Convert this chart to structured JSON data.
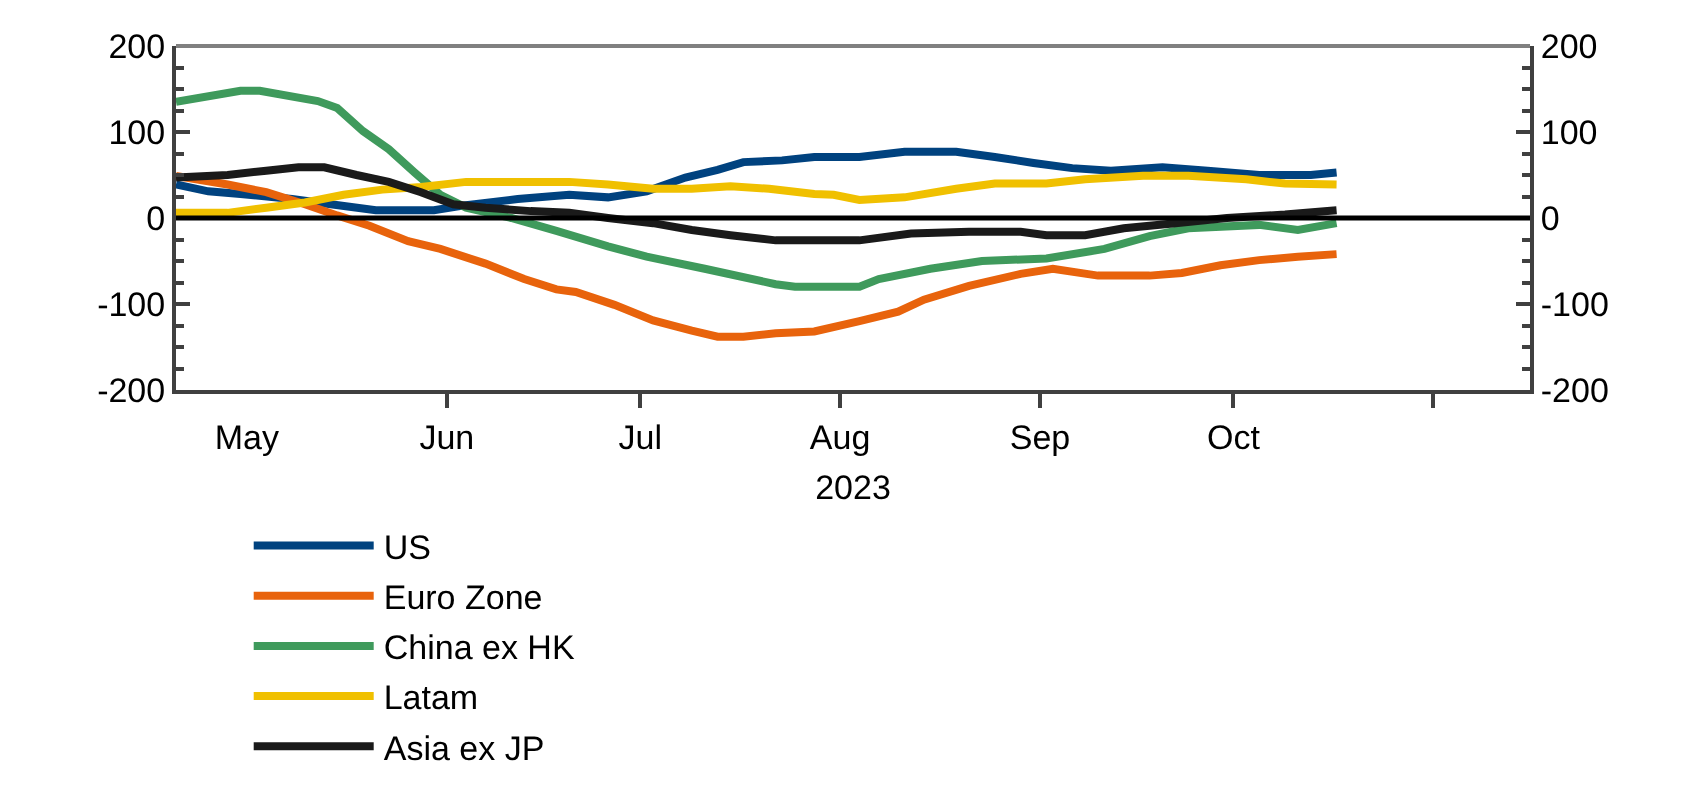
{
  "chart_data": {
    "type": "line",
    "xlabel": "2023",
    "xlim": [
      "2023-04-20",
      "2023-11-16"
    ],
    "xticks": [
      {
        "value": "2023-05-01",
        "label": "May"
      },
      {
        "value": "2023-06-01",
        "label": "Jun"
      },
      {
        "value": "2023-07-01",
        "label": "Jul"
      },
      {
        "value": "2023-08-01",
        "label": "Aug"
      },
      {
        "value": "2023-09-01",
        "label": "Sep"
      },
      {
        "value": "2023-10-01",
        "label": "Oct"
      },
      {
        "value": "2023-11-01",
        "label": null
      }
    ],
    "ylim": [
      -200,
      200
    ],
    "yticks": [
      -200,
      -100,
      0,
      100,
      200
    ],
    "y2lim": [
      -200,
      200
    ],
    "y2ticks": [
      -200,
      -100,
      0,
      100,
      200
    ],
    "legend": "bottom",
    "marker": "none",
    "line_style": "solid",
    "ref_lines": [
      {
        "axis": "y",
        "value": 0,
        "color": "#000000"
      }
    ],
    "series": [
      {
        "name": "US",
        "color": "#00427f",
        "x": [
          "2023-04-20",
          "2023-04-25",
          "2023-04-30",
          "2023-05-08",
          "2023-05-14",
          "2023-05-21",
          "2023-05-30",
          "2023-06-04",
          "2023-06-12",
          "2023-06-20",
          "2023-06-26",
          "2023-07-02",
          "2023-07-08",
          "2023-07-13",
          "2023-07-17",
          "2023-07-23",
          "2023-07-28",
          "2023-08-04",
          "2023-08-11",
          "2023-08-19",
          "2023-08-25",
          "2023-08-31",
          "2023-09-06",
          "2023-09-12",
          "2023-09-20",
          "2023-09-27",
          "2023-10-05",
          "2023-10-13",
          "2023-10-17"
        ],
        "values": [
          39,
          31,
          28,
          22,
          16,
          9,
          9,
          15,
          22,
          27,
          24,
          31,
          47,
          56,
          65,
          67,
          71,
          71,
          77,
          77,
          71,
          64,
          58,
          55,
          59,
          55,
          50,
          50,
          53
        ]
      },
      {
        "name": "Euro Zone",
        "color": "#e8630c",
        "x": [
          "2023-04-20",
          "2023-04-28",
          "2023-05-04",
          "2023-05-10",
          "2023-05-15",
          "2023-05-20",
          "2023-05-26",
          "2023-05-31",
          "2023-06-07",
          "2023-06-13",
          "2023-06-18",
          "2023-06-21",
          "2023-06-27",
          "2023-07-03",
          "2023-07-09",
          "2023-07-13",
          "2023-07-17",
          "2023-07-22",
          "2023-07-28",
          "2023-08-04",
          "2023-08-10",
          "2023-08-14",
          "2023-08-21",
          "2023-08-29",
          "2023-09-03",
          "2023-09-10",
          "2023-09-18",
          "2023-09-23",
          "2023-09-29",
          "2023-10-05",
          "2023-10-11",
          "2023-10-17"
        ],
        "values": [
          49,
          39,
          30,
          16,
          3,
          -9,
          -27,
          -36,
          -53,
          -71,
          -83,
          -86,
          -101,
          -119,
          -131,
          -138,
          -138,
          -134,
          -132,
          -120,
          -109,
          -95,
          -79,
          -65,
          -59,
          -67,
          -67,
          -64,
          -55,
          -49,
          -45,
          -42
        ]
      },
      {
        "name": "China ex HK",
        "color": "#3f9a5c",
        "x": [
          "2023-04-20",
          "2023-04-30",
          "2023-05-03",
          "2023-05-12",
          "2023-05-15",
          "2023-05-19",
          "2023-05-23",
          "2023-05-27",
          "2023-05-31",
          "2023-06-04",
          "2023-06-11",
          "2023-06-18",
          "2023-06-26",
          "2023-07-02",
          "2023-07-11",
          "2023-07-22",
          "2023-07-25",
          "2023-08-04",
          "2023-08-07",
          "2023-08-15",
          "2023-08-23",
          "2023-09-02",
          "2023-09-11",
          "2023-09-18",
          "2023-09-24",
          "2023-10-05",
          "2023-10-11",
          "2023-10-17"
        ],
        "values": [
          135,
          148,
          148,
          136,
          128,
          101,
          80,
          53,
          27,
          12,
          0,
          -15,
          -33,
          -45,
          -59,
          -77,
          -80,
          -80,
          -71,
          -59,
          -50,
          -47,
          -36,
          -21,
          -12,
          -8,
          -14,
          -6
        ]
      },
      {
        "name": "Latam",
        "color": "#f0c000",
        "x": [
          "2023-04-20",
          "2023-04-28",
          "2023-05-04",
          "2023-05-10",
          "2023-05-16",
          "2023-05-22",
          "2023-05-28",
          "2023-06-04",
          "2023-06-10",
          "2023-06-20",
          "2023-06-26",
          "2023-07-03",
          "2023-07-09",
          "2023-07-15",
          "2023-07-21",
          "2023-07-28",
          "2023-07-31",
          "2023-08-04",
          "2023-08-11",
          "2023-08-19",
          "2023-08-25",
          "2023-09-02",
          "2023-09-08",
          "2023-09-17",
          "2023-09-24",
          "2023-10-03",
          "2023-10-09",
          "2023-10-17"
        ],
        "values": [
          6,
          6,
          12,
          18,
          27,
          33,
          36,
          42,
          42,
          42,
          39,
          34,
          34,
          37,
          34,
          28,
          27,
          21,
          24,
          34,
          40,
          40,
          45,
          49,
          49,
          45,
          40,
          39
        ]
      },
      {
        "name": "Asia ex JP",
        "color": "#1a1a1a",
        "x": [
          "2023-04-20",
          "2023-04-28",
          "2023-05-04",
          "2023-05-09",
          "2023-05-13",
          "2023-05-18",
          "2023-05-23",
          "2023-05-28",
          "2023-06-02",
          "2023-06-07",
          "2023-06-14",
          "2023-06-20",
          "2023-06-26",
          "2023-07-03",
          "2023-07-09",
          "2023-07-15",
          "2023-07-22",
          "2023-07-28",
          "2023-08-04",
          "2023-08-12",
          "2023-08-21",
          "2023-08-29",
          "2023-09-02",
          "2023-09-08",
          "2023-09-14",
          "2023-09-22",
          "2023-09-30",
          "2023-10-09",
          "2023-10-17"
        ],
        "values": [
          47,
          50,
          55,
          59,
          59,
          50,
          42,
          30,
          16,
          12,
          8,
          6,
          0,
          -6,
          -14,
          -20,
          -26,
          -26,
          -26,
          -18,
          -16,
          -16,
          -20,
          -20,
          -12,
          -6,
          0,
          4,
          9
        ]
      }
    ]
  }
}
